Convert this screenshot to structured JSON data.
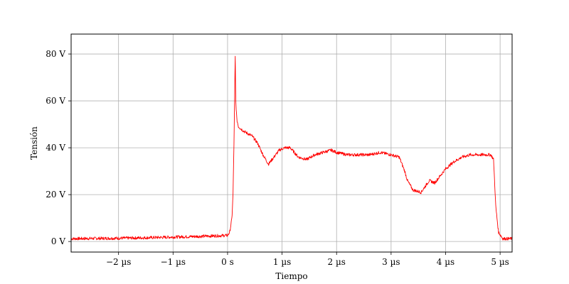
{
  "chart_data": {
    "type": "line",
    "title": "",
    "xlabel": "Tiempo",
    "ylabel": "Tensión",
    "xlim": [
      -2.87,
      5.22
    ],
    "ylim": [
      -4.5,
      88.5
    ],
    "grid": true,
    "x_ticks": [
      {
        "value": -2,
        "label": "−2 µs"
      },
      {
        "value": -1,
        "label": "−1 µs"
      },
      {
        "value": 0,
        "label": "0 s"
      },
      {
        "value": 1,
        "label": "1 µs"
      },
      {
        "value": 2,
        "label": "2 µs"
      },
      {
        "value": 3,
        "label": "3 µs"
      },
      {
        "value": 4,
        "label": "4 µs"
      },
      {
        "value": 5,
        "label": "5 µs"
      }
    ],
    "y_ticks": [
      {
        "value": 0,
        "label": "0 V"
      },
      {
        "value": 20,
        "label": "20 V"
      },
      {
        "value": 40,
        "label": "40 V"
      },
      {
        "value": 60,
        "label": "60 V"
      },
      {
        "value": 80,
        "label": "80 V"
      }
    ],
    "series": [
      {
        "color": "#ff0000",
        "x_unit": "µs",
        "y_unit": "V",
        "x": [
          -2.87,
          -2.5,
          -2.0,
          -1.5,
          -1.0,
          -0.5,
          0.0,
          0.04,
          0.08,
          0.1,
          0.12,
          0.14,
          0.15,
          0.17,
          0.2,
          0.3,
          0.45,
          0.55,
          0.65,
          0.75,
          0.85,
          0.95,
          1.05,
          1.15,
          1.3,
          1.45,
          1.6,
          1.75,
          1.9,
          2.0,
          2.2,
          2.4,
          2.6,
          2.8,
          3.0,
          3.15,
          3.25,
          3.3,
          3.4,
          3.55,
          3.7,
          3.8,
          3.9,
          4.0,
          4.15,
          4.3,
          4.45,
          4.6,
          4.75,
          4.83,
          4.88,
          4.92,
          4.97,
          5.05,
          5.22
        ],
        "y": [
          1.2,
          1.3,
          1.4,
          1.6,
          1.9,
          2.2,
          2.6,
          4,
          10,
          20,
          45,
          80,
          60,
          52,
          49,
          47,
          45,
          42,
          37,
          33,
          36,
          39,
          40,
          40,
          36,
          35,
          37,
          38,
          39,
          38,
          37,
          37,
          37,
          38,
          37,
          36,
          30,
          26,
          22,
          21,
          26,
          25,
          28,
          31,
          34,
          36,
          37,
          37,
          37,
          37,
          35,
          15,
          4,
          1.2,
          1.2
        ]
      }
    ]
  }
}
